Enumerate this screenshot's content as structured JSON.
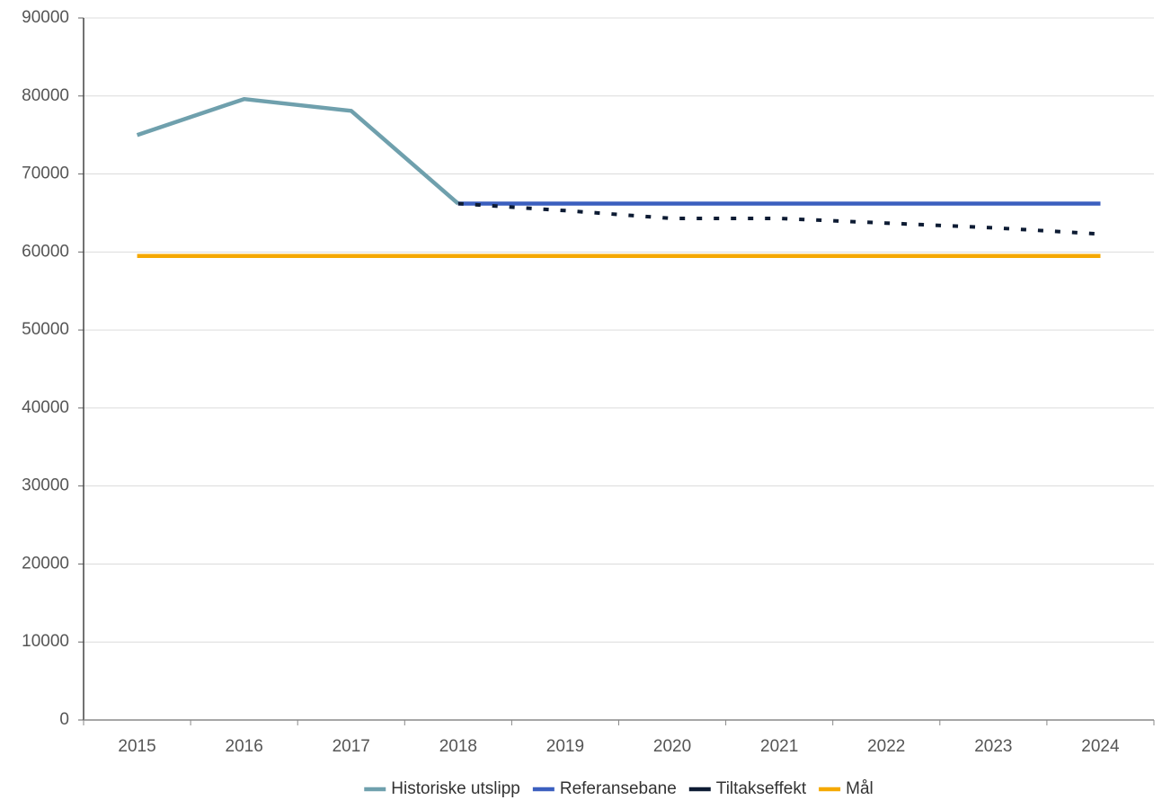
{
  "chart_data": {
    "type": "line",
    "categories": [
      "2015",
      "2016",
      "2017",
      "2018",
      "2019",
      "2020",
      "2021",
      "2022",
      "2023",
      "2024"
    ],
    "series": [
      {
        "name": "Historiske utslipp",
        "color": "#6fa0ad",
        "values": [
          75000,
          79600,
          78100,
          66200,
          null,
          null,
          null,
          null,
          null,
          null
        ]
      },
      {
        "name": "Referansebane",
        "color": "#3b5fbf",
        "values": [
          null,
          null,
          null,
          66200,
          66200,
          66200,
          66200,
          66200,
          66200,
          66200
        ]
      },
      {
        "name": "Tiltakseffekt",
        "color": "#0d1b33",
        "dashed": true,
        "values": [
          null,
          null,
          null,
          66200,
          65300,
          64300,
          64300,
          63700,
          63100,
          62300
        ]
      },
      {
        "name": "Mål",
        "color": "#f5a800",
        "values": [
          59500,
          59500,
          59500,
          59500,
          59500,
          59500,
          59500,
          59500,
          59500,
          59500
        ]
      }
    ],
    "ylim": [
      0,
      90000
    ],
    "yticks": [
      0,
      10000,
      20000,
      30000,
      40000,
      50000,
      60000,
      70000,
      80000,
      90000
    ],
    "grid": true,
    "legend": "bottom"
  }
}
